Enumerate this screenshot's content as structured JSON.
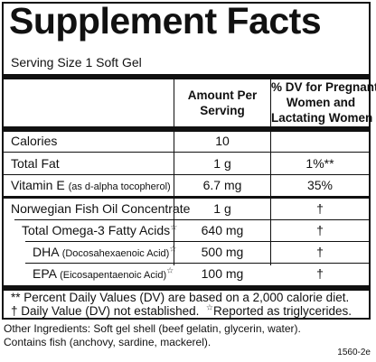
{
  "title": "Supplement Facts",
  "serving_size": "Serving Size 1 Soft Gel",
  "headers": {
    "amount": [
      "Amount Per",
      "Serving"
    ],
    "dv": [
      "% DV for Pregnant",
      "Women and",
      "Lactating Women"
    ]
  },
  "rows": [
    {
      "name": "Calories",
      "amount": "10",
      "dv": ""
    },
    {
      "name": "Total Fat",
      "amount": "1 g",
      "dv": "1%**"
    },
    {
      "name": "Vitamin E",
      "note": "(as d-alpha tocopherol)",
      "amount": "6.7 mg",
      "dv": "35%"
    },
    {
      "name": "Norwegian Fish Oil Concentrate",
      "amount": "1 g",
      "dv": "†"
    },
    {
      "name": "Total Omega-3 Fatty Acids",
      "mark": "☆",
      "amount": "640 mg",
      "dv": "†"
    },
    {
      "name": "DHA",
      "note": "(Docosahexaenoic Acid)",
      "mark": "☆",
      "amount": "500 mg",
      "dv": "†"
    },
    {
      "name": "EPA",
      "note": "(Eicosapentaenoic Acid)",
      "mark": "☆",
      "amount": "100 mg",
      "dv": "†"
    }
  ],
  "footnotes": {
    "line1": "** Percent Daily Values (DV) are based on a 2,000 calorie diet.",
    "line2a": "† Daily Value (DV) not established.",
    "line2_mark": "☆",
    "line2b": "Reported as triglycerides."
  },
  "ingredients": {
    "line1": "Other Ingredients:  Soft gel shell (beef gelatin, glycerin, water).",
    "line2": "Contains fish (anchovy, sardine, mackerel)."
  },
  "code": "1560-2e"
}
